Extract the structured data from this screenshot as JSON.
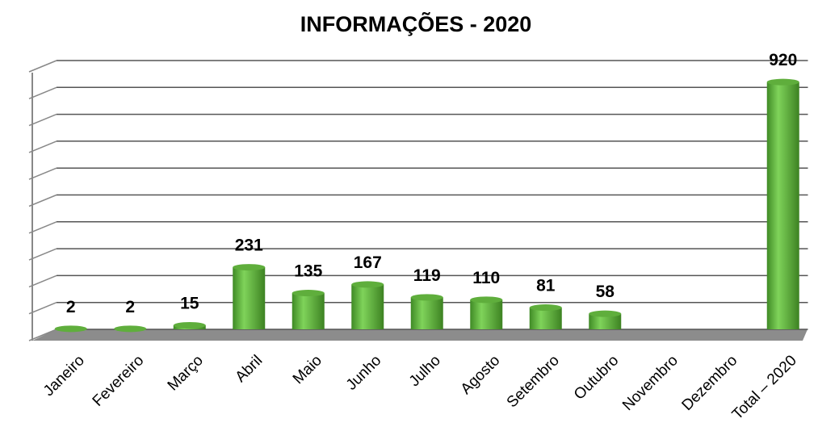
{
  "chart_data": {
    "type": "bar",
    "title": "INFORMAÇÕES - 2020",
    "categories": [
      "Janeiro",
      "Fevereiro",
      "Março",
      "Abril",
      "Maio",
      "Junho",
      "Julho",
      "Agosto",
      "Setembro",
      "Outubro",
      "Novembro",
      "Dezembro",
      "Total – 2020"
    ],
    "values": [
      2,
      2,
      15,
      231,
      135,
      167,
      119,
      110,
      81,
      58,
      null,
      null,
      920
    ],
    "color": "#6cc04a",
    "ylim": [
      0,
      1000
    ],
    "yticks": [
      0,
      100,
      200,
      300,
      400,
      500,
      600,
      700,
      800,
      900,
      1000
    ],
    "grid": true
  }
}
